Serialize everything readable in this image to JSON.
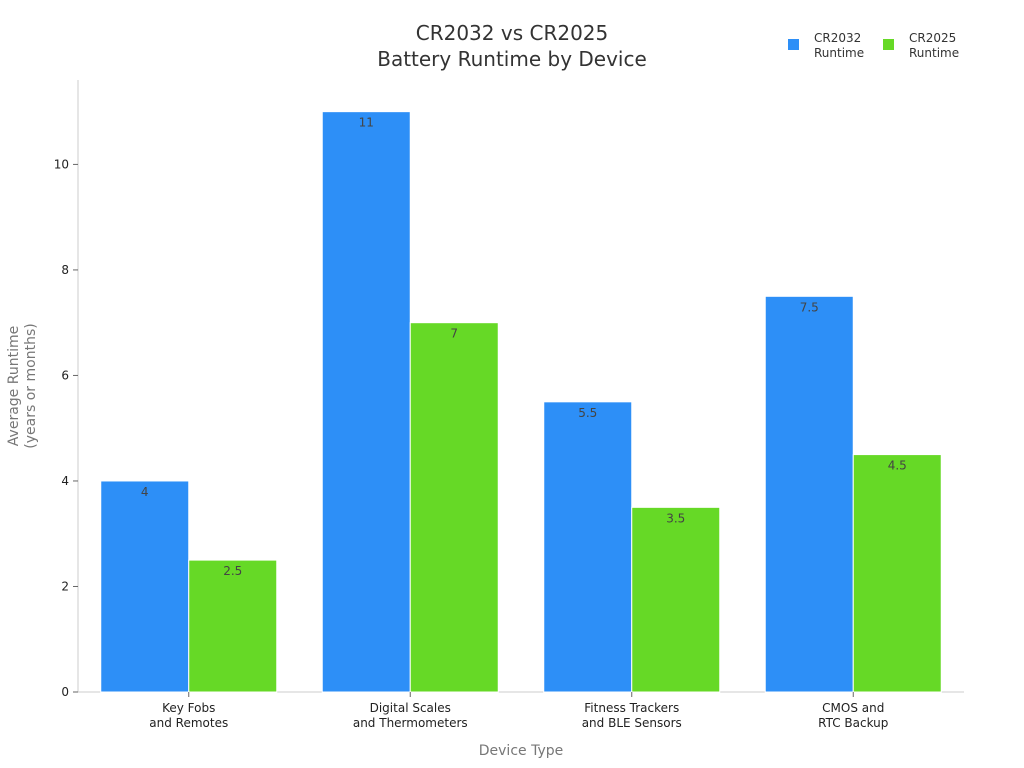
{
  "chart_data": {
    "type": "bar",
    "title": [
      "CR2032 vs CR2025",
      "Battery Runtime by Device"
    ],
    "xlabel": "Device Type",
    "ylabel": [
      "Average Runtime",
      "(years or months)"
    ],
    "categories": [
      [
        "Key Fobs",
        "and Remotes"
      ],
      [
        "Digital Scales",
        "and Thermometers"
      ],
      [
        "Fitness Trackers",
        "and BLE Sensors"
      ],
      [
        "CMOS and",
        "RTC Backup"
      ]
    ],
    "series": [
      {
        "name": [
          "CR2032",
          "Runtime"
        ],
        "color": "#2d8ff7",
        "values": [
          4,
          11,
          5.5,
          7.5
        ]
      },
      {
        "name": [
          "CR2025",
          "Runtime"
        ],
        "color": "#66d926",
        "values": [
          2.5,
          7,
          3.5,
          4.5
        ]
      }
    ],
    "ylim": [
      0,
      11.6
    ],
    "yticks": [
      0,
      2,
      4,
      6,
      8,
      10
    ],
    "grid": false,
    "legend_position": "top-right"
  }
}
